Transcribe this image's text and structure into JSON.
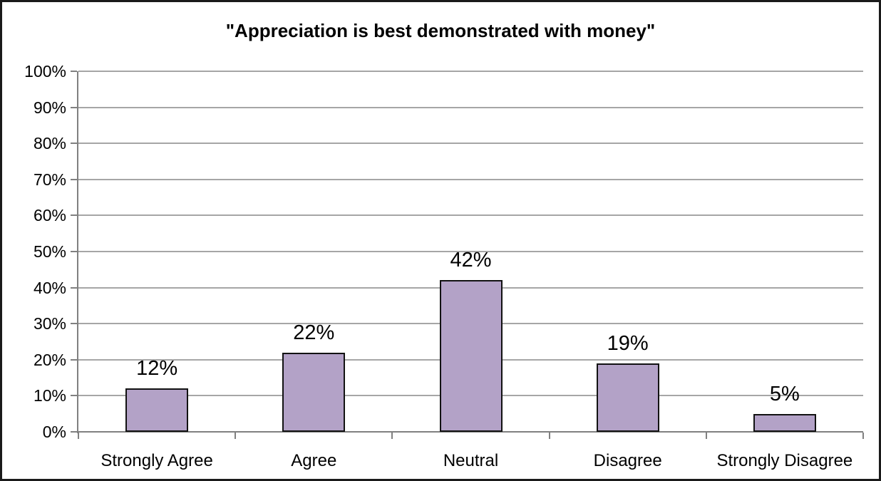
{
  "chart_data": {
    "type": "bar",
    "title": "\"Appreciation is best demonstrated with money\"",
    "categories": [
      "Strongly Agree",
      "Agree",
      "Neutral",
      "Disagree",
      "Strongly Disagree"
    ],
    "values": [
      12,
      22,
      42,
      19,
      5
    ],
    "value_labels": [
      "12%",
      "22%",
      "42%",
      "19%",
      "5%"
    ],
    "xlabel": "",
    "ylabel": "",
    "ylim": [
      0,
      100
    ],
    "ytick_step": 10,
    "ytick_labels": [
      "0%",
      "10%",
      "20%",
      "30%",
      "40%",
      "50%",
      "60%",
      "70%",
      "80%",
      "90%",
      "100%"
    ],
    "grid": true,
    "legend": "none",
    "colors": {
      "bar_fill": "#b3a2c7",
      "bar_border": "#121212",
      "gridline": "#a6a6a6",
      "axis": "#808080",
      "background": "#ffffff",
      "frame": "#1a1a1a",
      "text": "#000000"
    }
  }
}
